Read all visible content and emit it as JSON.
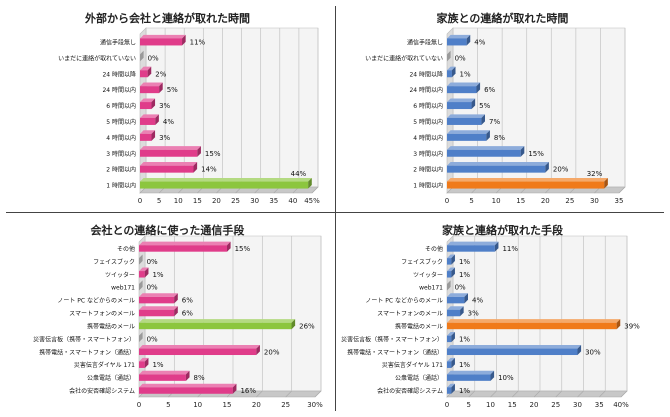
{
  "chart_data": [
    {
      "type": "bar",
      "orientation": "horizontal",
      "title": "外部から会社と連絡が取れた時間",
      "categories": [
        "通信手段無し",
        "いまだに連絡が取れていない",
        "24 時間以降",
        "24 時間以内",
        "6 時間以内",
        "5 時間以内",
        "4 時間以内",
        "3 時間以内",
        "2 時間以内",
        "1 時間以内"
      ],
      "values": [
        11,
        0,
        2,
        5,
        3,
        4,
        3,
        15,
        14,
        44
      ],
      "value_labels": [
        "11%",
        "0%",
        "2%",
        "5%",
        "3%",
        "4%",
        "3%",
        "15%",
        "14%",
        "44%"
      ],
      "ticks": [
        "0",
        "5",
        "10",
        "15",
        "20",
        "25",
        "30",
        "35",
        "40",
        "45%"
      ],
      "xlim": [
        0,
        45
      ],
      "colors": [
        "#e03c8a",
        "#e03c8a",
        "#e03c8a",
        "#e03c8a",
        "#e03c8a",
        "#e03c8a",
        "#e03c8a",
        "#e03c8a",
        "#e03c8a",
        "#8cc63e"
      ],
      "grid": true
    },
    {
      "type": "bar",
      "orientation": "horizontal",
      "title": "家族との連絡が取れた時間",
      "categories": [
        "通信手段無し",
        "いまだに連絡が取れていない",
        "24 時間以降",
        "24 時間以内",
        "6 時間以内",
        "5 時間以内",
        "4 時間以内",
        "3 時間以内",
        "2 時間以内",
        "1 時間以内"
      ],
      "values": [
        4,
        0,
        1,
        6,
        5,
        7,
        8,
        15,
        20,
        32
      ],
      "value_labels": [
        "4%",
        "0%",
        "1%",
        "6%",
        "5%",
        "7%",
        "8%",
        "15%",
        "20%",
        "32%"
      ],
      "ticks": [
        "0",
        "5",
        "10",
        "15",
        "20",
        "25",
        "30",
        "35"
      ],
      "xlim": [
        0,
        35
      ],
      "colors": [
        "#4f7fc8",
        "#4f7fc8",
        "#4f7fc8",
        "#4f7fc8",
        "#4f7fc8",
        "#4f7fc8",
        "#4f7fc8",
        "#4f7fc8",
        "#4f7fc8",
        "#f07a1a"
      ],
      "grid": true
    },
    {
      "type": "bar",
      "orientation": "horizontal",
      "title": "会社との連絡に使った通信手段",
      "categories": [
        "その他",
        "フェイスブック",
        "ツイッター",
        "web171",
        "ノート PC などからのメール",
        "スマートフォンのメール",
        "携帯電話のメール",
        "災害伝言板（携帯・スマートフォン）",
        "携帯電話・スマートフォン（通話）",
        "災害伝言ダイヤル 171",
        "公衆電話（通話）",
        "会社の安否確認システム"
      ],
      "values": [
        15,
        0,
        1,
        0,
        6,
        6,
        26,
        0,
        20,
        1,
        8,
        16
      ],
      "value_labels": [
        "15%",
        "0%",
        "1%",
        "0%",
        "6%",
        "6%",
        "26%",
        "0%",
        "20%",
        "1%",
        "8%",
        "16%"
      ],
      "ticks": [
        "0",
        "5",
        "10",
        "15",
        "20",
        "25",
        "30%"
      ],
      "xlim": [
        0,
        30
      ],
      "colors": [
        "#e03c8a",
        "#e03c8a",
        "#e03c8a",
        "#e03c8a",
        "#e03c8a",
        "#e03c8a",
        "#8cc63e",
        "#e03c8a",
        "#e03c8a",
        "#e03c8a",
        "#e03c8a",
        "#e03c8a"
      ],
      "grid": true
    },
    {
      "type": "bar",
      "orientation": "horizontal",
      "title": "家族と連絡が取れた手段",
      "categories": [
        "その他",
        "フェイスブック",
        "ツイッター",
        "web171",
        "ノート PC などからのメール",
        "スマートフォンのメール",
        "携帯電話のメール",
        "災害伝言板（携帯・スマートフォン）",
        "携帯電話・スマートフォン（通話）",
        "災害伝言ダイヤル 171",
        "公衆電話（通話）",
        "会社の安否確認システム"
      ],
      "values": [
        11,
        1,
        1,
        0,
        4,
        3,
        39,
        1,
        30,
        1,
        10,
        1
      ],
      "value_labels": [
        "11%",
        "1%",
        "1%",
        "0%",
        "4%",
        "3%",
        "39%",
        "1%",
        "30%",
        "1%",
        "10%",
        "1%"
      ],
      "ticks": [
        "0",
        "5",
        "10",
        "15",
        "20",
        "25",
        "30",
        "35",
        "40%"
      ],
      "xlim": [
        0,
        40
      ],
      "colors": [
        "#4f7fc8",
        "#4f7fc8",
        "#4f7fc8",
        "#4f7fc8",
        "#4f7fc8",
        "#4f7fc8",
        "#f07a1a",
        "#4f7fc8",
        "#4f7fc8",
        "#4f7fc8",
        "#4f7fc8",
        "#4f7fc8"
      ],
      "grid": true
    }
  ]
}
